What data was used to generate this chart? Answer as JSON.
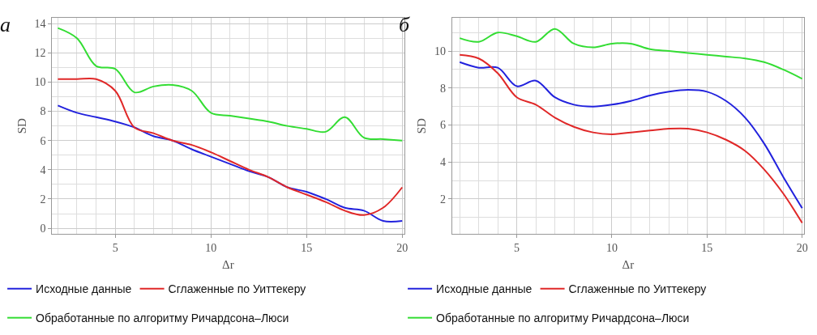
{
  "chart_data": [
    {
      "type": "line",
      "title": "а",
      "xlabel": "Δr",
      "ylabel": "SD",
      "x": [
        2,
        3,
        4,
        5,
        6,
        7,
        8,
        9,
        10,
        11,
        12,
        13,
        14,
        15,
        16,
        17,
        18,
        19,
        20
      ],
      "xlim": [
        1.7,
        20.1
      ],
      "ylim": [
        -0.4,
        14.4
      ],
      "xticks": [
        5,
        10,
        15,
        20
      ],
      "yticks": [
        0,
        2,
        4,
        6,
        8,
        10,
        12,
        14
      ],
      "grid": true,
      "legend": "bottom",
      "line_style": "solid",
      "marker": "none",
      "series": [
        {
          "name": "Исходные данные",
          "color": "#2222dd",
          "values": [
            8.4,
            7.9,
            7.6,
            7.3,
            6.9,
            6.3,
            6.0,
            5.4,
            4.9,
            4.4,
            3.9,
            3.5,
            2.8,
            2.5,
            2.0,
            1.4,
            1.2,
            0.5,
            0.5
          ]
        },
        {
          "name": "Сглаженные по Уиттекеру",
          "color": "#e02828",
          "values": [
            10.2,
            10.2,
            10.2,
            9.4,
            6.9,
            6.5,
            6.0,
            5.7,
            5.2,
            4.6,
            4.0,
            3.5,
            2.8,
            2.3,
            1.8,
            1.2,
            0.9,
            1.4,
            2.8
          ]
        },
        {
          "name": "Обработанные по алгоритму Ричардсона–Люси",
          "color": "#33dd33",
          "values": [
            13.7,
            13.0,
            11.1,
            10.9,
            9.3,
            9.7,
            9.8,
            9.4,
            7.9,
            7.7,
            7.5,
            7.3,
            7.0,
            6.8,
            6.6,
            7.6,
            6.2,
            6.1,
            6.0
          ]
        }
      ]
    },
    {
      "type": "line",
      "title": "б",
      "xlabel": "Δr",
      "ylabel": "SD",
      "x": [
        2,
        3,
        4,
        5,
        6,
        7,
        8,
        9,
        10,
        11,
        12,
        13,
        14,
        15,
        16,
        17,
        18,
        19,
        20
      ],
      "xlim": [
        1.6,
        20.1
      ],
      "ylim": [
        0.1,
        11.8
      ],
      "xticks": [
        5,
        10,
        15,
        20
      ],
      "yticks": [
        2,
        4,
        6,
        8,
        10
      ],
      "grid": true,
      "legend": "bottom",
      "line_style": "solid",
      "marker": "none",
      "series": [
        {
          "name": "Исходные данные",
          "color": "#2222dd",
          "values": [
            9.4,
            9.1,
            9.1,
            8.1,
            8.4,
            7.5,
            7.1,
            7.0,
            7.1,
            7.3,
            7.6,
            7.8,
            7.9,
            7.8,
            7.3,
            6.4,
            5.0,
            3.2,
            1.5
          ]
        },
        {
          "name": "Сглаженные по Уиттекеру",
          "color": "#e02828",
          "values": [
            9.8,
            9.6,
            8.8,
            7.5,
            7.1,
            6.4,
            5.9,
            5.6,
            5.5,
            5.6,
            5.7,
            5.8,
            5.8,
            5.6,
            5.2,
            4.6,
            3.6,
            2.3,
            0.7
          ]
        },
        {
          "name": "Обработанные по алгоритму Ричардсона–Люси",
          "color": "#33dd33",
          "values": [
            10.7,
            10.5,
            11.0,
            10.8,
            10.5,
            11.2,
            10.4,
            10.2,
            10.4,
            10.4,
            10.1,
            10.0,
            9.9,
            9.8,
            9.7,
            9.6,
            9.4,
            9.0,
            8.5
          ]
        }
      ]
    }
  ]
}
